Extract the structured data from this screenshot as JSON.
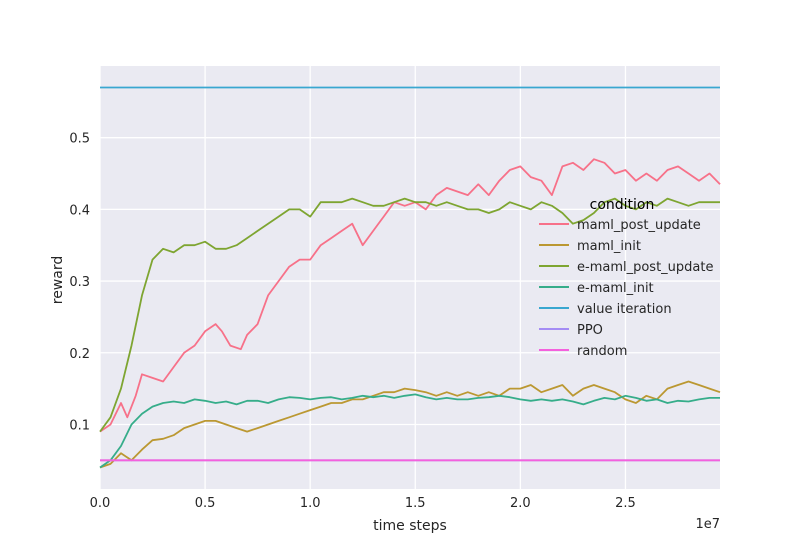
{
  "chart_data": {
    "type": "line",
    "xlabel": "time steps",
    "ylabel": "reward",
    "x_offset_label": "1e7",
    "xlim": [
      0,
      2.95
    ],
    "ylim": [
      0.01,
      0.6
    ],
    "xticks": [
      0.0,
      0.5,
      1.0,
      1.5,
      2.0,
      2.5
    ],
    "xtick_labels": [
      "0.0",
      "0.5",
      "1.0",
      "1.5",
      "2.0",
      "2.5"
    ],
    "yticks": [
      0.1,
      0.2,
      0.3,
      0.4,
      0.5
    ],
    "ytick_labels": [
      "0.1",
      "0.2",
      "0.3",
      "0.4",
      "0.5"
    ],
    "grid": true,
    "background": "#eaeaf2",
    "legend": {
      "title": "condition",
      "placement": "center-right"
    },
    "series": [
      {
        "name": "maml_post_update",
        "color": "#f77189",
        "x": [
          0.0,
          0.05,
          0.1,
          0.13,
          0.17,
          0.2,
          0.25,
          0.3,
          0.35,
          0.4,
          0.45,
          0.5,
          0.55,
          0.58,
          0.62,
          0.67,
          0.7,
          0.75,
          0.8,
          0.85,
          0.9,
          0.95,
          1.0,
          1.05,
          1.1,
          1.15,
          1.2,
          1.25,
          1.3,
          1.35,
          1.4,
          1.45,
          1.5,
          1.55,
          1.6,
          1.65,
          1.7,
          1.75,
          1.8,
          1.85,
          1.9,
          1.95,
          2.0,
          2.05,
          2.1,
          2.15,
          2.2,
          2.25,
          2.3,
          2.35,
          2.4,
          2.45,
          2.5,
          2.55,
          2.6,
          2.65,
          2.7,
          2.75,
          2.8,
          2.85,
          2.9,
          2.95
        ],
        "y": [
          0.09,
          0.1,
          0.13,
          0.11,
          0.14,
          0.17,
          0.165,
          0.16,
          0.18,
          0.2,
          0.21,
          0.23,
          0.24,
          0.23,
          0.21,
          0.205,
          0.225,
          0.24,
          0.28,
          0.3,
          0.32,
          0.33,
          0.33,
          0.35,
          0.36,
          0.37,
          0.38,
          0.35,
          0.37,
          0.39,
          0.41,
          0.405,
          0.41,
          0.4,
          0.42,
          0.43,
          0.425,
          0.42,
          0.435,
          0.42,
          0.44,
          0.455,
          0.46,
          0.445,
          0.44,
          0.42,
          0.46,
          0.465,
          0.455,
          0.47,
          0.465,
          0.45,
          0.455,
          0.44,
          0.45,
          0.44,
          0.455,
          0.46,
          0.45,
          0.44,
          0.45,
          0.435
        ]
      },
      {
        "name": "maml_init",
        "color": "#bb9832",
        "x": [
          0.0,
          0.05,
          0.1,
          0.15,
          0.2,
          0.25,
          0.3,
          0.35,
          0.4,
          0.45,
          0.5,
          0.55,
          0.6,
          0.65,
          0.7,
          0.75,
          0.8,
          0.85,
          0.9,
          0.95,
          1.0,
          1.05,
          1.1,
          1.15,
          1.2,
          1.25,
          1.3,
          1.35,
          1.4,
          1.45,
          1.5,
          1.55,
          1.6,
          1.65,
          1.7,
          1.75,
          1.8,
          1.85,
          1.9,
          1.95,
          2.0,
          2.05,
          2.1,
          2.15,
          2.2,
          2.25,
          2.3,
          2.35,
          2.4,
          2.45,
          2.5,
          2.55,
          2.6,
          2.65,
          2.7,
          2.75,
          2.8,
          2.85,
          2.9,
          2.95
        ],
        "y": [
          0.04,
          0.045,
          0.06,
          0.05,
          0.065,
          0.078,
          0.08,
          0.085,
          0.095,
          0.1,
          0.105,
          0.105,
          0.1,
          0.095,
          0.09,
          0.095,
          0.1,
          0.105,
          0.11,
          0.115,
          0.12,
          0.125,
          0.13,
          0.13,
          0.135,
          0.135,
          0.14,
          0.145,
          0.145,
          0.15,
          0.148,
          0.145,
          0.14,
          0.145,
          0.14,
          0.145,
          0.14,
          0.145,
          0.14,
          0.15,
          0.15,
          0.155,
          0.145,
          0.15,
          0.155,
          0.14,
          0.15,
          0.155,
          0.15,
          0.145,
          0.135,
          0.13,
          0.14,
          0.135,
          0.15,
          0.155,
          0.16,
          0.155,
          0.15,
          0.145
        ]
      },
      {
        "name": "e-maml_post_update",
        "color": "#7ea531",
        "x": [
          0.0,
          0.05,
          0.1,
          0.15,
          0.2,
          0.25,
          0.3,
          0.35,
          0.4,
          0.45,
          0.5,
          0.55,
          0.6,
          0.65,
          0.7,
          0.75,
          0.8,
          0.85,
          0.9,
          0.95,
          1.0,
          1.05,
          1.1,
          1.15,
          1.2,
          1.25,
          1.3,
          1.35,
          1.4,
          1.45,
          1.5,
          1.55,
          1.6,
          1.65,
          1.7,
          1.75,
          1.8,
          1.85,
          1.9,
          1.95,
          2.0,
          2.05,
          2.1,
          2.15,
          2.2,
          2.25,
          2.3,
          2.35,
          2.4,
          2.45,
          2.5,
          2.55,
          2.6,
          2.65,
          2.7,
          2.75,
          2.8,
          2.85,
          2.9,
          2.95
        ],
        "y": [
          0.09,
          0.11,
          0.15,
          0.21,
          0.28,
          0.33,
          0.345,
          0.34,
          0.35,
          0.35,
          0.355,
          0.345,
          0.345,
          0.35,
          0.36,
          0.37,
          0.38,
          0.39,
          0.4,
          0.4,
          0.39,
          0.41,
          0.41,
          0.41,
          0.415,
          0.41,
          0.405,
          0.405,
          0.41,
          0.415,
          0.41,
          0.41,
          0.405,
          0.41,
          0.405,
          0.4,
          0.4,
          0.395,
          0.4,
          0.41,
          0.405,
          0.4,
          0.41,
          0.405,
          0.395,
          0.38,
          0.385,
          0.395,
          0.41,
          0.415,
          0.405,
          0.4,
          0.41,
          0.405,
          0.415,
          0.41,
          0.405,
          0.41,
          0.41,
          0.41
        ]
      },
      {
        "name": "e-maml_init",
        "color": "#36ad8a",
        "x": [
          0.0,
          0.05,
          0.1,
          0.15,
          0.2,
          0.25,
          0.3,
          0.35,
          0.4,
          0.45,
          0.5,
          0.55,
          0.6,
          0.65,
          0.7,
          0.75,
          0.8,
          0.85,
          0.9,
          0.95,
          1.0,
          1.05,
          1.1,
          1.15,
          1.2,
          1.25,
          1.3,
          1.35,
          1.4,
          1.45,
          1.5,
          1.55,
          1.6,
          1.65,
          1.7,
          1.75,
          1.8,
          1.85,
          1.9,
          1.95,
          2.0,
          2.05,
          2.1,
          2.15,
          2.2,
          2.25,
          2.3,
          2.35,
          2.4,
          2.45,
          2.5,
          2.55,
          2.6,
          2.65,
          2.7,
          2.75,
          2.8,
          2.85,
          2.9,
          2.95
        ],
        "y": [
          0.04,
          0.05,
          0.07,
          0.1,
          0.115,
          0.125,
          0.13,
          0.132,
          0.13,
          0.135,
          0.133,
          0.13,
          0.132,
          0.128,
          0.133,
          0.133,
          0.13,
          0.135,
          0.138,
          0.137,
          0.135,
          0.137,
          0.138,
          0.135,
          0.137,
          0.14,
          0.138,
          0.14,
          0.137,
          0.14,
          0.142,
          0.138,
          0.135,
          0.137,
          0.135,
          0.135,
          0.137,
          0.138,
          0.14,
          0.138,
          0.135,
          0.133,
          0.135,
          0.133,
          0.135,
          0.132,
          0.128,
          0.133,
          0.137,
          0.135,
          0.14,
          0.137,
          0.133,
          0.135,
          0.13,
          0.133,
          0.132,
          0.135,
          0.137,
          0.137
        ]
      },
      {
        "name": "value iteration",
        "color": "#39a7d0",
        "x": [
          0.0,
          2.95
        ],
        "y": [
          0.57,
          0.57
        ]
      },
      {
        "name": "PPO",
        "color": "#a48cf4",
        "x": [
          0.0,
          2.95
        ],
        "y": [
          0.05,
          0.05
        ]
      },
      {
        "name": "random",
        "color": "#f461dd",
        "x": [
          0.0,
          2.95
        ],
        "y": [
          0.05,
          0.05
        ]
      }
    ]
  }
}
